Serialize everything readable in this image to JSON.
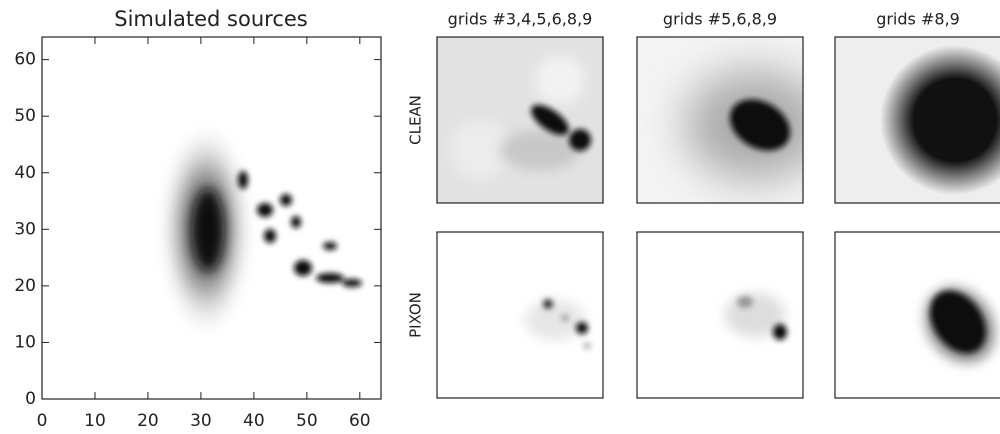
{
  "chart_data": {
    "type": "image",
    "title": "Simulated sources",
    "xlim": [
      0,
      64
    ],
    "ylim": [
      0,
      64
    ],
    "xticks": [
      0,
      10,
      20,
      30,
      40,
      50,
      60
    ],
    "yticks": [
      0,
      10,
      20,
      30,
      40,
      50,
      60
    ],
    "grid": false
  },
  "panels": {
    "columns": [
      "grids #3,4,5,6,8,9",
      "grids #5,6,8,9",
      "grids #8,9"
    ],
    "rows": [
      "CLEAN",
      "PIXON"
    ]
  }
}
